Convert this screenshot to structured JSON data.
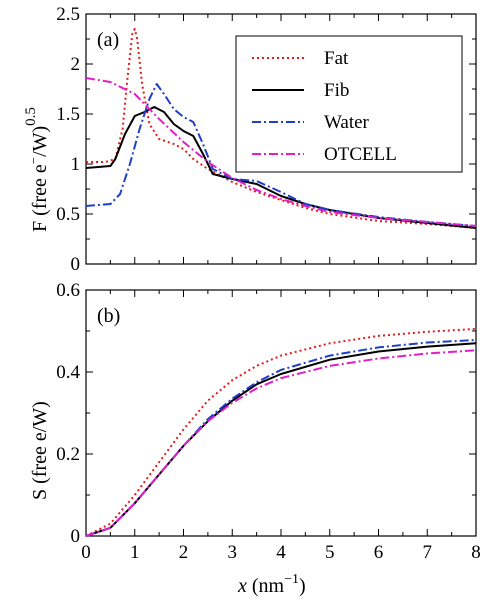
{
  "chart_data": {
    "type": "line",
    "xlabel": "x (nm⁻¹)",
    "xlabel_italic": "x",
    "xlabel_unit": " (nm",
    "xlabel_sup": "−1",
    "xlabel_close": ")",
    "xlim": [
      0,
      8
    ],
    "xticks": [
      "0",
      "1",
      "2",
      "3",
      "4",
      "5",
      "6",
      "7",
      "8"
    ],
    "panels": [
      {
        "label": "(a)",
        "ylabel": "F (free e⁻/W)",
        "ylabel_main": "F (free e",
        "ylabel_minus": "−",
        "ylabel_rest": "/W)",
        "ylabel_exp": "0.5",
        "ylim": [
          0,
          2.5
        ],
        "yticks": [
          "0",
          "0.5",
          "1",
          "1.5",
          "2",
          "2.5"
        ],
        "ytick_values": [
          0,
          0.5,
          1,
          1.5,
          2,
          2.5
        ],
        "legend": {
          "position": "top-right",
          "entries": [
            "Fat",
            "Fib",
            "Water",
            "OTCELL"
          ]
        },
        "series": [
          {
            "name": "Fat",
            "color": "#e41a1c",
            "dash": "2,3",
            "points": [
              [
                0,
                1.02
              ],
              [
                0.4,
                1.02
              ],
              [
                0.6,
                1.05
              ],
              [
                0.75,
                1.35
              ],
              [
                0.85,
                1.85
              ],
              [
                0.95,
                2.3
              ],
              [
                1.0,
                2.35
              ],
              [
                1.05,
                2.25
              ],
              [
                1.15,
                1.8
              ],
              [
                1.3,
                1.4
              ],
              [
                1.5,
                1.25
              ],
              [
                1.8,
                1.2
              ],
              [
                2.0,
                1.15
              ],
              [
                2.2,
                1.05
              ],
              [
                2.5,
                0.95
              ],
              [
                3.0,
                0.82
              ],
              [
                3.5,
                0.72
              ],
              [
                4.0,
                0.64
              ],
              [
                4.5,
                0.56
              ],
              [
                5.0,
                0.5
              ],
              [
                6.0,
                0.43
              ],
              [
                7.0,
                0.4
              ],
              [
                8.0,
                0.36
              ]
            ]
          },
          {
            "name": "Fib",
            "color": "#000000",
            "dash": "",
            "points": [
              [
                0,
                0.96
              ],
              [
                0.5,
                0.98
              ],
              [
                0.6,
                1.05
              ],
              [
                0.8,
                1.3
              ],
              [
                1.0,
                1.48
              ],
              [
                1.2,
                1.52
              ],
              [
                1.4,
                1.57
              ],
              [
                1.6,
                1.52
              ],
              [
                1.8,
                1.4
              ],
              [
                2.0,
                1.33
              ],
              [
                2.2,
                1.28
              ],
              [
                2.4,
                1.1
              ],
              [
                2.6,
                0.9
              ],
              [
                3.0,
                0.85
              ],
              [
                3.5,
                0.8
              ],
              [
                4.0,
                0.68
              ],
              [
                4.5,
                0.6
              ],
              [
                5.0,
                0.54
              ],
              [
                6.0,
                0.46
              ],
              [
                7.0,
                0.41
              ],
              [
                8.0,
                0.36
              ]
            ]
          },
          {
            "name": "Water",
            "color": "#1f3fc8",
            "dash": "9,3,2,3",
            "points": [
              [
                0,
                0.58
              ],
              [
                0.5,
                0.6
              ],
              [
                0.7,
                0.7
              ],
              [
                0.9,
                1.0
              ],
              [
                1.1,
                1.35
              ],
              [
                1.3,
                1.65
              ],
              [
                1.45,
                1.8
              ],
              [
                1.6,
                1.7
              ],
              [
                1.8,
                1.55
              ],
              [
                2.0,
                1.47
              ],
              [
                2.2,
                1.42
              ],
              [
                2.4,
                1.2
              ],
              [
                2.6,
                0.95
              ],
              [
                3.0,
                0.85
              ],
              [
                3.5,
                0.83
              ],
              [
                4.0,
                0.72
              ],
              [
                4.5,
                0.6
              ],
              [
                5.0,
                0.54
              ],
              [
                6.0,
                0.47
              ],
              [
                7.0,
                0.42
              ],
              [
                8.0,
                0.38
              ]
            ]
          },
          {
            "name": "OTCELL",
            "color": "#e01fc8",
            "dash": "9,3,2,3",
            "points": [
              [
                0,
                1.86
              ],
              [
                0.5,
                1.82
              ],
              [
                1.0,
                1.7
              ],
              [
                1.5,
                1.45
              ],
              [
                2.0,
                1.22
              ],
              [
                2.5,
                1.02
              ],
              [
                3.0,
                0.86
              ],
              [
                3.5,
                0.74
              ],
              [
                4.0,
                0.65
              ],
              [
                4.5,
                0.58
              ],
              [
                5.0,
                0.52
              ],
              [
                6.0,
                0.46
              ],
              [
                7.0,
                0.42
              ],
              [
                8.0,
                0.38
              ]
            ]
          }
        ]
      },
      {
        "label": "(b)",
        "ylabel": "S (free e/W)",
        "ylim": [
          0,
          0.6
        ],
        "yticks": [
          "0",
          "0.2",
          "0.4",
          "0.6"
        ],
        "ytick_values": [
          0,
          0.2,
          0.4,
          0.6
        ],
        "series": [
          {
            "name": "Fat",
            "color": "#e41a1c",
            "dash": "2,3",
            "points": [
              [
                0,
                0
              ],
              [
                0.5,
                0.03
              ],
              [
                1.0,
                0.1
              ],
              [
                1.5,
                0.18
              ],
              [
                2.0,
                0.26
              ],
              [
                2.5,
                0.33
              ],
              [
                3.0,
                0.38
              ],
              [
                3.5,
                0.415
              ],
              [
                4.0,
                0.44
              ],
              [
                5.0,
                0.47
              ],
              [
                6.0,
                0.488
              ],
              [
                7.0,
                0.498
              ],
              [
                8.0,
                0.505
              ]
            ]
          },
          {
            "name": "Fib",
            "color": "#000000",
            "dash": "",
            "points": [
              [
                0,
                0
              ],
              [
                0.5,
                0.02
              ],
              [
                1.0,
                0.08
              ],
              [
                1.5,
                0.15
              ],
              [
                2.0,
                0.22
              ],
              [
                2.5,
                0.28
              ],
              [
                3.0,
                0.33
              ],
              [
                3.5,
                0.37
              ],
              [
                4.0,
                0.395
              ],
              [
                5.0,
                0.43
              ],
              [
                6.0,
                0.45
              ],
              [
                7.0,
                0.462
              ],
              [
                8.0,
                0.47
              ]
            ]
          },
          {
            "name": "Water",
            "color": "#1f3fc8",
            "dash": "9,3,2,3",
            "points": [
              [
                0,
                0
              ],
              [
                0.5,
                0.02
              ],
              [
                1.0,
                0.08
              ],
              [
                1.5,
                0.15
              ],
              [
                2.0,
                0.22
              ],
              [
                2.5,
                0.285
              ],
              [
                3.0,
                0.335
              ],
              [
                3.5,
                0.375
              ],
              [
                4.0,
                0.405
              ],
              [
                5.0,
                0.44
              ],
              [
                6.0,
                0.46
              ],
              [
                7.0,
                0.472
              ],
              [
                8.0,
                0.478
              ]
            ]
          },
          {
            "name": "OTCELL",
            "color": "#e01fc8",
            "dash": "9,3,2,3",
            "points": [
              [
                0,
                0
              ],
              [
                0.5,
                0.02
              ],
              [
                1.0,
                0.08
              ],
              [
                1.5,
                0.15
              ],
              [
                2.0,
                0.22
              ],
              [
                2.5,
                0.28
              ],
              [
                3.0,
                0.325
              ],
              [
                3.5,
                0.36
              ],
              [
                4.0,
                0.385
              ],
              [
                5.0,
                0.415
              ],
              [
                6.0,
                0.433
              ],
              [
                7.0,
                0.445
              ],
              [
                8.0,
                0.453
              ]
            ]
          }
        ]
      }
    ]
  }
}
